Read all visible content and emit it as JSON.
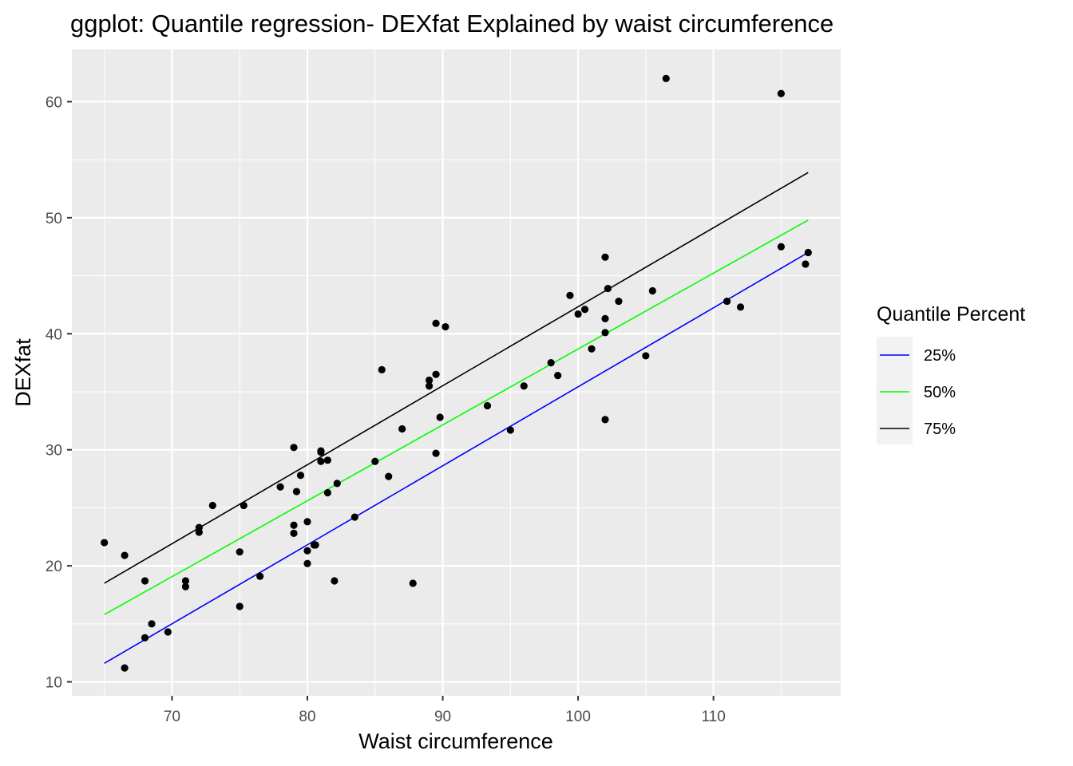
{
  "chart_data": {
    "type": "scatter",
    "title": "ggplot: Quantile regression- DEXfat Explained by waist circumference",
    "xlabel": "Waist circumference",
    "ylabel": "DEXfat",
    "xlim": [
      62.6,
      119.4
    ],
    "ylim": [
      8.8,
      64.5
    ],
    "xticks": [
      70,
      80,
      90,
      100,
      110
    ],
    "yticks": [
      10,
      20,
      30,
      40,
      50,
      60
    ],
    "grid": true,
    "legend": {
      "title": "Quantile Percent",
      "placement": "right",
      "entries": [
        {
          "label": "25%",
          "color": "#0000ff"
        },
        {
          "label": "50%",
          "color": "#00ff00"
        },
        {
          "label": "75%",
          "color": "#000000"
        }
      ]
    },
    "points": {
      "color": "#000000",
      "x": [
        65,
        66.5,
        66.5,
        68,
        68,
        68.5,
        69.7,
        71,
        71,
        72,
        72,
        73,
        75,
        75,
        75.3,
        76.5,
        78,
        79,
        79,
        79,
        79.2,
        79.5,
        80,
        80,
        80,
        80.5,
        80.6,
        81,
        81,
        81,
        81.5,
        81.5,
        82,
        82.2,
        83.5,
        85,
        85.5,
        86,
        87,
        87.8,
        89,
        89,
        89.5,
        89.5,
        89.5,
        89.8,
        90.2,
        93.3,
        95,
        96,
        98,
        98.5,
        99.4,
        100,
        100.5,
        101,
        102,
        102,
        102,
        102,
        102.2,
        103,
        105,
        105.5,
        106.5,
        111,
        112,
        115,
        115,
        116.8,
        117
      ],
      "y": [
        22,
        20.9,
        11.2,
        18.7,
        13.8,
        15,
        14.3,
        18.7,
        18.2,
        23.3,
        22.9,
        25.2,
        21.2,
        16.5,
        25.2,
        19.1,
        26.8,
        30.2,
        23.5,
        22.8,
        26.4,
        27.8,
        23.8,
        21.3,
        20.2,
        21.8,
        21.8,
        29.8,
        29.9,
        29,
        29.1,
        26.3,
        18.7,
        27.1,
        24.2,
        29,
        36.9,
        27.7,
        31.8,
        18.5,
        36,
        35.5,
        40.9,
        36.5,
        29.7,
        32.8,
        40.6,
        33.8,
        31.7,
        35.5,
        37.5,
        36.4,
        43.3,
        41.7,
        42.1,
        38.7,
        46.6,
        41.3,
        40.1,
        32.6,
        43.9,
        42.8,
        38.1,
        43.7,
        62,
        42.8,
        42.3,
        60.7,
        47.5,
        46,
        47
      ]
    },
    "series": [
      {
        "name": "25%",
        "color": "#0000ff",
        "x": [
          65,
          117
        ],
        "y": [
          11.6,
          47.0
        ]
      },
      {
        "name": "50%",
        "color": "#00ff00",
        "x": [
          65,
          117
        ],
        "y": [
          15.8,
          49.8
        ]
      },
      {
        "name": "75%",
        "color": "#000000",
        "x": [
          65,
          117
        ],
        "y": [
          18.5,
          53.9
        ]
      }
    ]
  }
}
